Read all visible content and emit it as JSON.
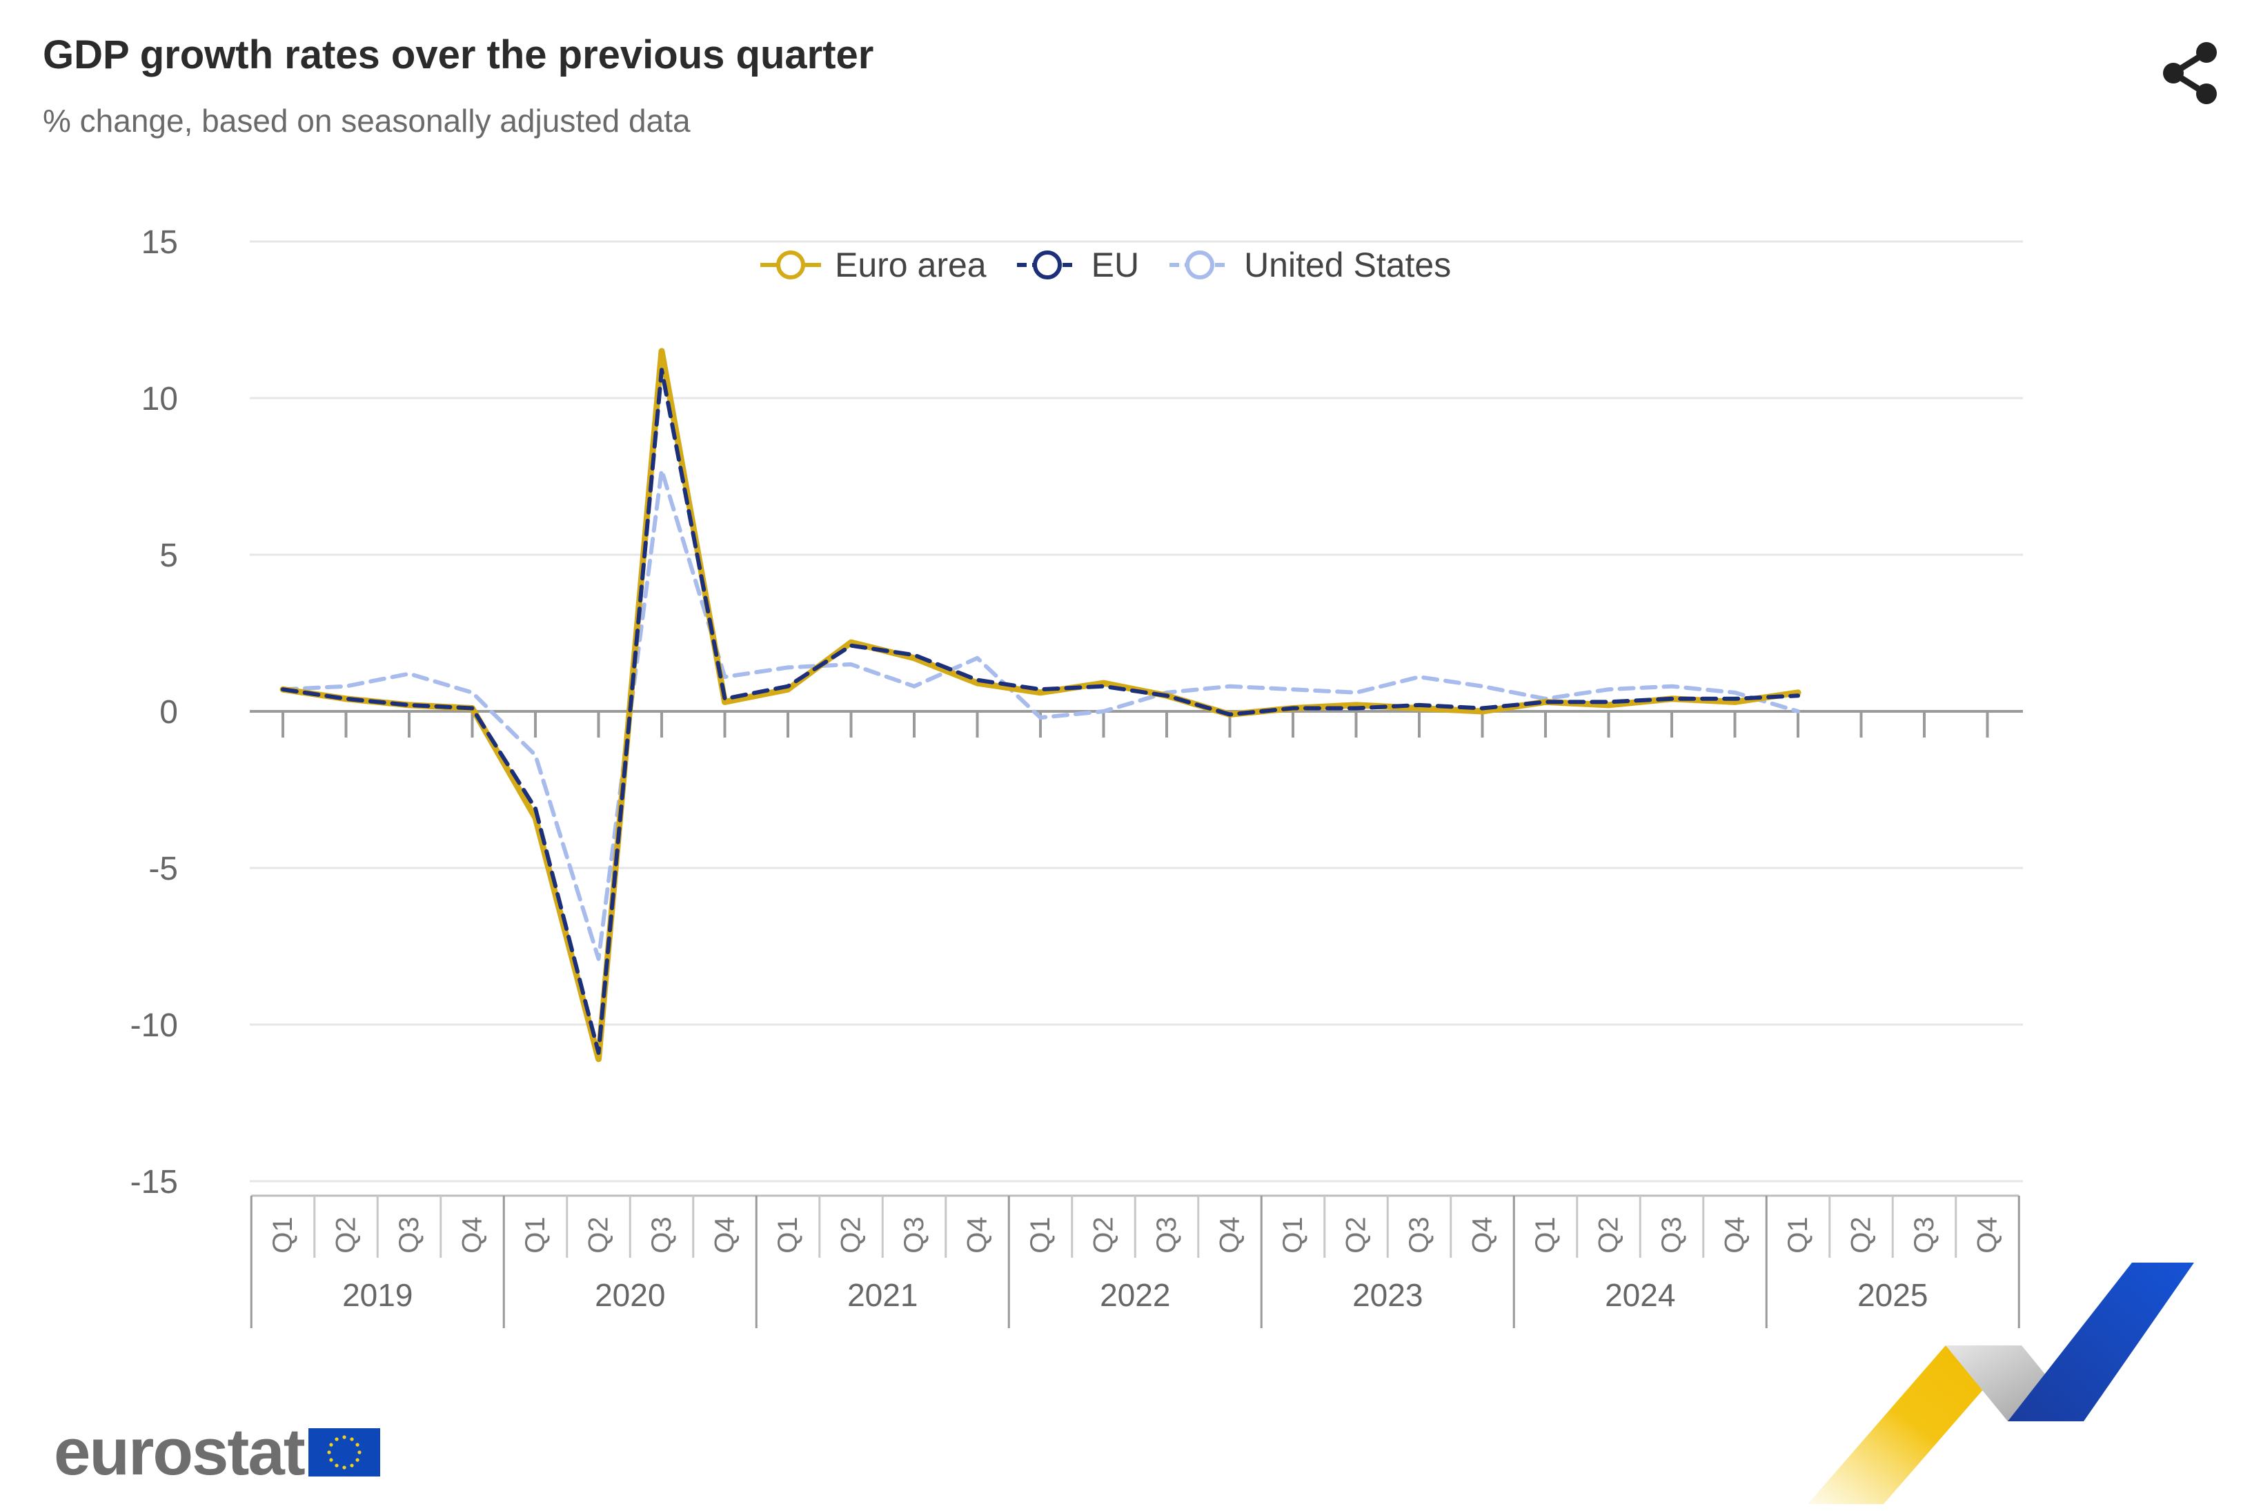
{
  "header": {
    "title": "GDP growth rates over the previous quarter",
    "subtitle": "% change, based on seasonally adjusted data",
    "share_icon": "share-icon"
  },
  "branding": {
    "logo_text": "eurostat",
    "flag_icon": "eu-flag-icon",
    "swoosh_icon": "eurostat-swoosh-icon"
  },
  "chart_data": {
    "type": "line",
    "title": "GDP growth rates over the previous quarter",
    "subtitle": "% change, based on seasonally adjusted data",
    "xlabel": "",
    "ylabel": "",
    "ylim": [
      -15,
      15
    ],
    "yticks": [
      15,
      10,
      5,
      0,
      -5,
      -10,
      -15
    ],
    "grid": true,
    "legend_position": "top-center",
    "years": [
      "2019",
      "2020",
      "2021",
      "2022",
      "2023",
      "2024",
      "2025"
    ],
    "quarter_labels": [
      "Q1",
      "Q2",
      "Q3",
      "Q4"
    ],
    "series": [
      {
        "name": "Euro area",
        "color": "#d4ab16",
        "style": "solid",
        "values": [
          0.7,
          0.4,
          0.2,
          0.1,
          -3.4,
          -11.1,
          11.5,
          0.3,
          0.7,
          2.2,
          1.7,
          0.9,
          0.6,
          0.9,
          0.5,
          -0.1,
          0.1,
          0.2,
          0.1,
          0.0,
          0.3,
          0.2,
          0.4,
          0.3,
          0.6
        ]
      },
      {
        "name": "EU",
        "color": "#1b2f7a",
        "style": "dashed",
        "values": [
          0.7,
          0.4,
          0.2,
          0.1,
          -3.1,
          -10.9,
          10.9,
          0.4,
          0.8,
          2.1,
          1.8,
          1.0,
          0.7,
          0.8,
          0.5,
          -0.1,
          0.1,
          0.1,
          0.2,
          0.1,
          0.3,
          0.3,
          0.4,
          0.4,
          0.5
        ]
      },
      {
        "name": "United States",
        "color": "#a7bbec",
        "style": "dashed",
        "values": [
          0.7,
          0.8,
          1.2,
          0.6,
          -1.4,
          -7.9,
          7.7,
          1.1,
          1.4,
          1.5,
          0.8,
          1.7,
          -0.2,
          0.0,
          0.6,
          0.8,
          0.7,
          0.6,
          1.1,
          0.8,
          0.4,
          0.7,
          0.8,
          0.6,
          0.0
        ]
      }
    ]
  }
}
